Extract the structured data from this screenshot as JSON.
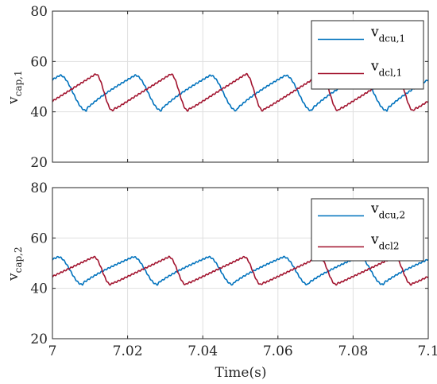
{
  "chart_data": [
    {
      "type": "line",
      "ylabel_main": "v",
      "ylabel_sub": "cap,1",
      "xlim": [
        7,
        7.1
      ],
      "ylim": [
        20,
        80
      ],
      "yticks": [
        "20",
        "40",
        "60",
        "80"
      ],
      "grid": true,
      "legend_position": "top-right",
      "series": [
        {
          "name_main": "v",
          "name_sub": "dcu,1",
          "color": "#0072bd",
          "period": 0.02,
          "min": 40.5,
          "max": 54.5,
          "first_peak": 7.002,
          "fall_duration": 0.007,
          "shape": "rounded-top"
        },
        {
          "name_main": "v",
          "name_sub": "dcl,1",
          "color": "#a2142f",
          "period": 0.02,
          "min": 40.5,
          "max": 55,
          "first_peak": 7.0115,
          "fall_duration": 0.0045,
          "shape": "sawtooth"
        }
      ]
    },
    {
      "type": "line",
      "ylabel_main": "v",
      "ylabel_sub": "cap,2",
      "xlim": [
        7,
        7.1
      ],
      "ylim": [
        20,
        80
      ],
      "yticks": [
        "20",
        "40",
        "60",
        "80"
      ],
      "grid": true,
      "legend_position": "top-right",
      "series": [
        {
          "name_main": "v",
          "name_sub": "dcu,2",
          "color": "#0072bd",
          "period": 0.02,
          "min": 41.5,
          "max": 52.5,
          "first_peak": 7.0015,
          "fall_duration": 0.0065,
          "shape": "rounded-top"
        },
        {
          "name_main": "v",
          "name_sub": "dcl2",
          "color": "#a2142f",
          "period": 0.02,
          "min": 41.5,
          "max": 52.5,
          "first_peak": 7.011,
          "fall_duration": 0.0045,
          "shape": "sawtooth"
        }
      ]
    }
  ],
  "x_axis": {
    "label": "Time(s)",
    "ticks": [
      {
        "value": 7,
        "label": "7"
      },
      {
        "value": 7.02,
        "label": "7.02"
      },
      {
        "value": 7.04,
        "label": "7.04"
      },
      {
        "value": 7.06,
        "label": "7.06"
      },
      {
        "value": 7.08,
        "label": "7.08"
      },
      {
        "value": 7.1,
        "label": "7.1"
      }
    ]
  }
}
